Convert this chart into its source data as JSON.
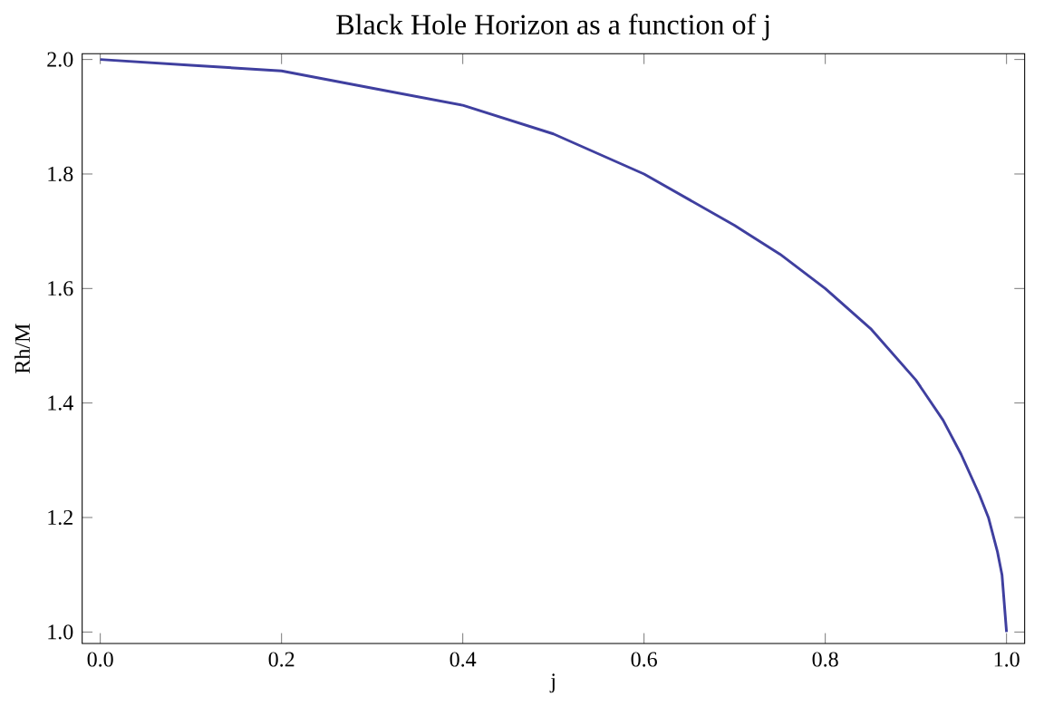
{
  "chart_data": {
    "type": "line",
    "title": "Black Hole Horizon as a function of j",
    "xlabel": "j",
    "ylabel": "Rh/M",
    "series": [
      {
        "color": "#3f3f9f",
        "x": [
          0,
          0.1,
          0.2,
          0.3,
          0.4,
          0.5,
          0.6,
          0.7,
          0.75,
          0.8,
          0.85,
          0.9,
          0.93,
          0.95,
          0.97,
          0.98,
          0.99,
          0.995,
          1.0
        ],
        "values": [
          2.0,
          1.99,
          1.98,
          1.95,
          1.92,
          1.87,
          1.8,
          1.71,
          1.66,
          1.6,
          1.53,
          1.44,
          1.37,
          1.31,
          1.24,
          1.2,
          1.14,
          1.1,
          1.0
        ]
      }
    ],
    "xlim": [
      -0.02,
      1.02
    ],
    "ylim": [
      0.98,
      2.01
    ],
    "xticks": [
      {
        "value": 0,
        "label": "0.0"
      },
      0.2,
      0.4,
      0.6,
      0.8,
      {
        "value": 1,
        "label": "1.0"
      }
    ],
    "yticks": [
      {
        "value": 1,
        "label": "1.0"
      },
      1.2,
      1.4,
      1.6,
      1.8,
      {
        "value": 2,
        "label": "2.0"
      }
    ],
    "grid": false,
    "marker": "none",
    "line_style": "solid"
  }
}
